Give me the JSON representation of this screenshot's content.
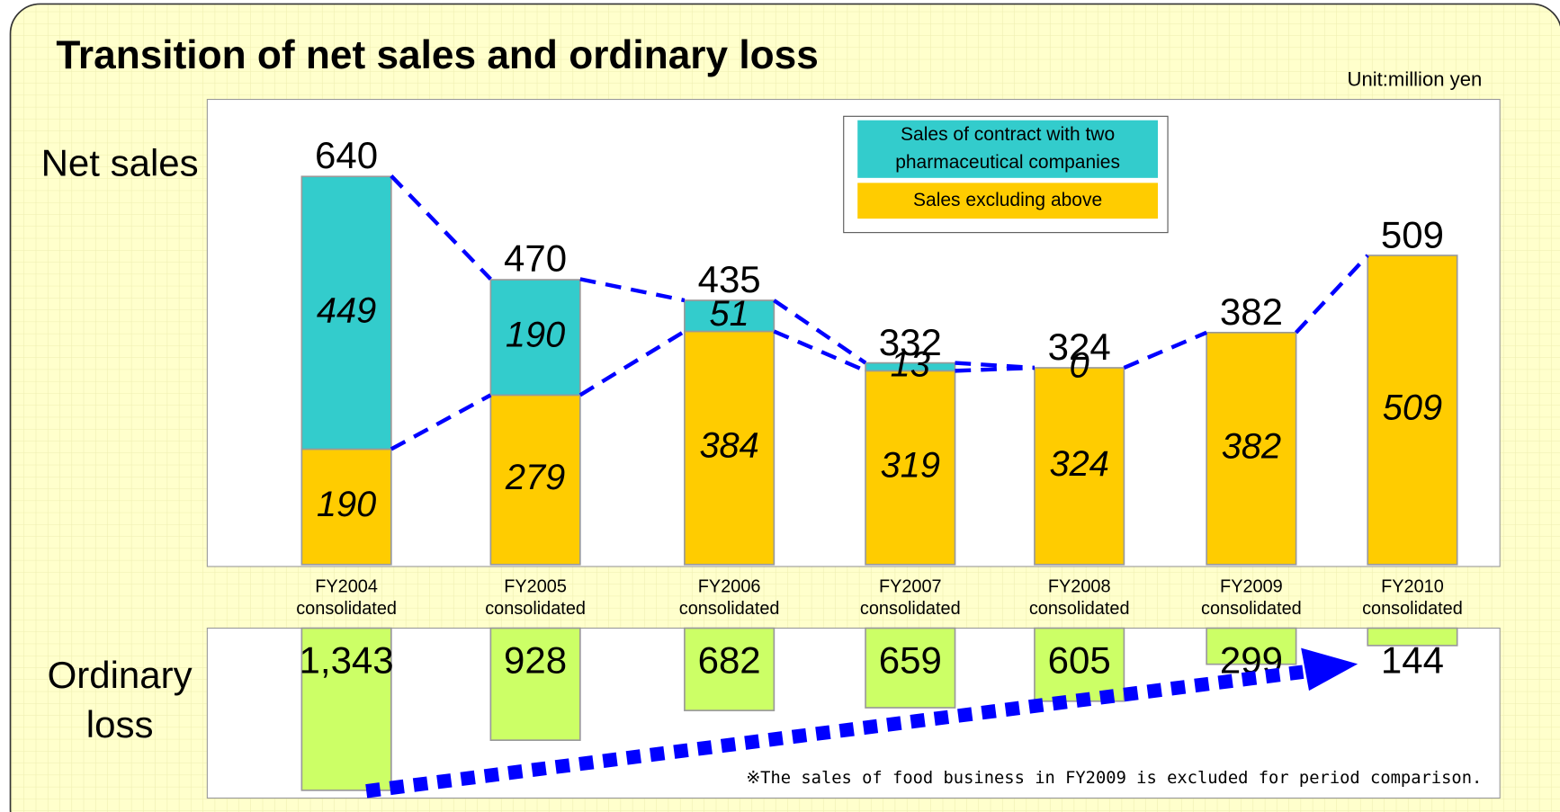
{
  "title": "Transition of net sales and ordinary loss",
  "unit": "Unit:million yen",
  "note": "※The sales of food business in FY2009 is excluded for period comparison.",
  "chart_data": [
    {
      "type": "stacked-bar",
      "label": "Net sales",
      "categories": [
        "FY2004 consolidated",
        "FY2005 consolidated",
        "FY2006 consolidated",
        "FY2007 consolidated",
        "FY2008 consolidated",
        "FY2009 consolidated",
        "FY2010 consolidated"
      ],
      "series": [
        {
          "name": "Sales excluding above",
          "color": "#ffcc00",
          "values": [
            190,
            279,
            384,
            319,
            324,
            382,
            509
          ]
        },
        {
          "name": "Sales of contract with two pharmaceutical companies",
          "color": "#33cccc",
          "values": [
            449,
            190,
            51,
            13,
            0,
            null,
            null
          ]
        }
      ],
      "totals": [
        640,
        470,
        435,
        332,
        324,
        382,
        509
      ]
    },
    {
      "type": "bar",
      "label": "Ordinary loss",
      "color": "#ccff66",
      "values": [
        1343,
        928,
        682,
        659,
        605,
        299,
        144
      ],
      "value_labels": [
        "1,343",
        "928",
        "682",
        "659",
        "605",
        "299",
        "144"
      ]
    }
  ]
}
